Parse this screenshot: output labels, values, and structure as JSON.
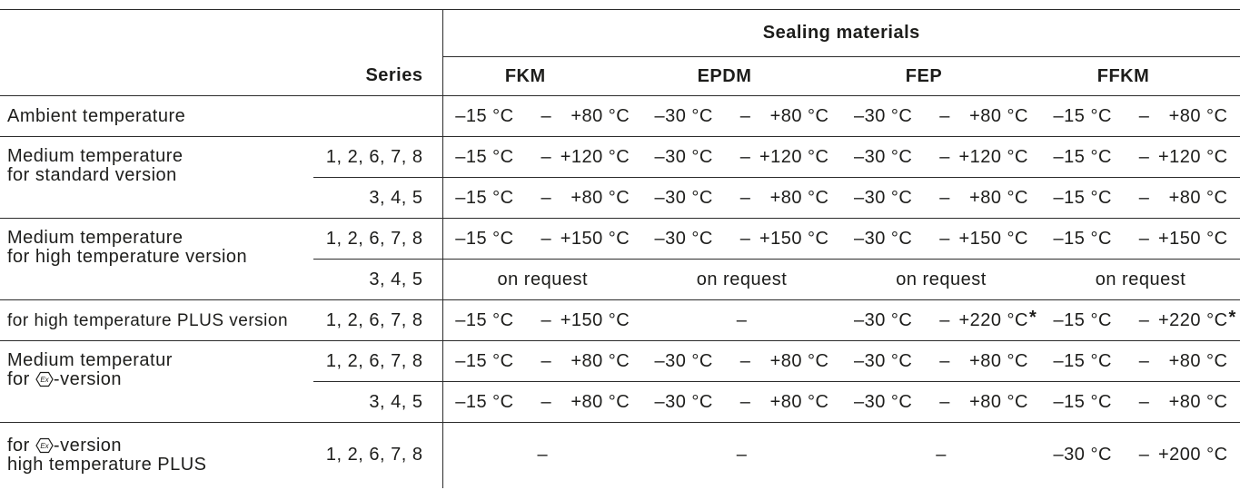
{
  "table": {
    "group_header": "Sealing materials",
    "series_header": "Series",
    "columns": [
      "FKM",
      "EPDM",
      "FEP",
      "FFKM"
    ],
    "range_separator": "–",
    "ex_symbol": "Ex",
    "groups": [
      {
        "label_lines": [
          "Ambient temperature"
        ],
        "rows": [
          {
            "cells": [
              {
                "from": "–15 °C",
                "to": "+80 °C"
              },
              {
                "from": "–30 °C",
                "to": "+80 °C"
              },
              {
                "from": "–30 °C",
                "to": "+80 °C"
              },
              {
                "from": "–15 °C",
                "to": "+80 °C"
              }
            ]
          }
        ]
      },
      {
        "label_lines": [
          "Medium temperature",
          "for standard version"
        ],
        "rows": [
          {
            "series": "1, 2, 6, 7, 8",
            "cells": [
              {
                "from": "–15 °C",
                "to": "+120 °C"
              },
              {
                "from": "–30 °C",
                "to": "+120 °C"
              },
              {
                "from": "–30 °C",
                "to": "+120 °C"
              },
              {
                "from": "–15 °C",
                "to": "+120 °C"
              }
            ]
          },
          {
            "series": "3, 4, 5",
            "cells": [
              {
                "from": "–15 °C",
                "to": "+80 °C"
              },
              {
                "from": "–30 °C",
                "to": "+80 °C"
              },
              {
                "from": "–30 °C",
                "to": "+80 °C"
              },
              {
                "from": "–15 °C",
                "to": "+80 °C"
              }
            ]
          }
        ]
      },
      {
        "label_lines": [
          "Medium temperature",
          "for high temperature version"
        ],
        "rows": [
          {
            "series": "1, 2, 6, 7, 8",
            "cells": [
              {
                "from": "–15 °C",
                "to": "+150 °C"
              },
              {
                "from": "–30 °C",
                "to": "+150 °C"
              },
              {
                "from": "–30 °C",
                "to": "+150 °C"
              },
              {
                "from": "–15 °C",
                "to": "+150 °C"
              }
            ]
          },
          {
            "series": "3, 4, 5",
            "cells": [
              {
                "text": "on request"
              },
              {
                "text": "on request"
              },
              {
                "text": "on request"
              },
              {
                "text": "on request"
              }
            ]
          }
        ]
      },
      {
        "label_lines": [
          "for high temperature PLUS version"
        ],
        "rows": [
          {
            "series": "1, 2, 6, 7, 8",
            "cells": [
              {
                "from": "–15 °C",
                "to": "+150 °C"
              },
              {
                "text": "–"
              },
              {
                "from": "–30 °C",
                "to": "+220 °C",
                "mark": "*"
              },
              {
                "from": "–15 °C",
                "to": "+220 °C",
                "mark": "*"
              }
            ]
          }
        ]
      },
      {
        "label_lines": [
          "Medium temperatur"
        ],
        "label_ex_line": {
          "prefix": "for ",
          "suffix": "-version"
        },
        "rows": [
          {
            "series": "1, 2, 6, 7, 8",
            "cells": [
              {
                "from": "–15 °C",
                "to": "+80 °C"
              },
              {
                "from": "–30 °C",
                "to": "+80 °C"
              },
              {
                "from": "–30 °C",
                "to": "+80 °C"
              },
              {
                "from": "–15 °C",
                "to": "+80 °C"
              }
            ]
          },
          {
            "series": "3, 4, 5",
            "cells": [
              {
                "from": "–15 °C",
                "to": "+80 °C"
              },
              {
                "from": "–30 °C",
                "to": "+80 °C"
              },
              {
                "from": "–30 °C",
                "to": "+80 °C"
              },
              {
                "from": "–15 °C",
                "to": "+80 °C"
              }
            ]
          }
        ]
      },
      {
        "label_ex_line": {
          "prefix": "for ",
          "suffix": "-version"
        },
        "label_lines": [
          "high temperature PLUS"
        ],
        "rows": [
          {
            "series": "1, 2, 6, 7, 8",
            "cells": [
              {
                "text": "–"
              },
              {
                "text": "–"
              },
              {
                "text": "–"
              },
              {
                "from": "–30 °C",
                "to": "+200 °C"
              }
            ]
          }
        ]
      }
    ]
  }
}
